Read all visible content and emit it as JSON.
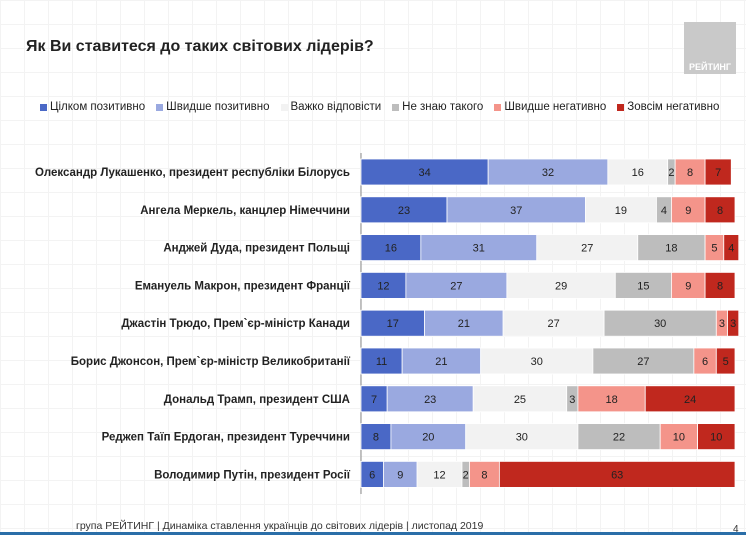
{
  "logo": "РЕЙТИНГ",
  "footer": "група РЕЙТИНГ | Динаміка ставлення українців до світових лідерів  | листопад 2019",
  "page_number": "4",
  "chart_data": {
    "type": "bar",
    "stacked": true,
    "orientation": "horizontal",
    "title": "Як Ви ставитеся до таких світових лідерів?",
    "legend_position": "top",
    "xlim": [
      0,
      100
    ],
    "categories": [
      "Олександр Лукашенко, президент республіки Білорусь",
      "Ангела Меркель, канцлер Німеччини",
      "Анджей Дуда, президент Польщі",
      "Емануель Макрон, президент Франції",
      "Джастін Трюдо, Прем`єр-міністр Канади",
      "Борис Джонсон, Прем`єр-міністр Великобританії",
      "Дональд Трамп, президент США",
      "Реджеп Таїп Ердоган, президент Туреччини",
      "Володимир Путін, президент Росії"
    ],
    "series": [
      {
        "name": "Цілком позитивно",
        "color": "#4a68c6",
        "values": [
          34,
          23,
          16,
          12,
          17,
          11,
          7,
          8,
          6
        ]
      },
      {
        "name": "Швидше позитивно",
        "color": "#9aa9e0",
        "values": [
          32,
          37,
          31,
          27,
          21,
          21,
          23,
          20,
          9
        ]
      },
      {
        "name": "Важко відповісти",
        "color": "#f2f2f2",
        "values": [
          16,
          19,
          27,
          29,
          27,
          30,
          25,
          30,
          12
        ]
      },
      {
        "name": "Не знаю такого",
        "color": "#bdbdbd",
        "values": [
          2,
          4,
          18,
          15,
          30,
          27,
          3,
          22,
          2
        ]
      },
      {
        "name": "Швидше негативно",
        "color": "#f4948a",
        "values": [
          8,
          9,
          5,
          9,
          3,
          6,
          18,
          10,
          8
        ]
      },
      {
        "name": "Зовсім негативно",
        "color": "#c0281e",
        "values": [
          7,
          8,
          4,
          8,
          3,
          5,
          24,
          10,
          63
        ]
      }
    ]
  }
}
